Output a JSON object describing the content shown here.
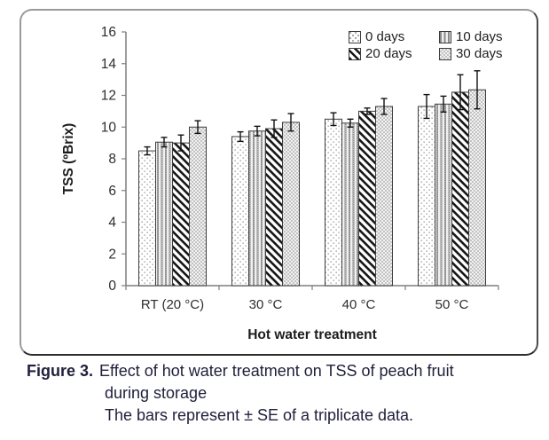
{
  "caption": {
    "label": "Figure 3.",
    "line1": "Effect of hot water treatment on TSS of peach fruit",
    "line2": "during storage",
    "line3": "The bars represent ± SE of a triplicate data."
  },
  "colors": {
    "caption_text": "#20203c",
    "axis": "#7f7f7f",
    "bar_outline": "#3d3d3d",
    "error_bar": "#111111",
    "pattern_dark": "#151515",
    "pattern_gray": "#8a8a8a",
    "pattern_light_gray": "#c2c2c2"
  },
  "chart_data": {
    "type": "bar",
    "title": "",
    "xlabel": "Hot water treatment",
    "ylabel": "TSS (ºBrix)",
    "ylim": [
      0,
      16
    ],
    "ytick_step": 2,
    "grid": false,
    "legend_position": "top-right",
    "categories": [
      "RT (20 °C)",
      "30 °C",
      "40 °C",
      "50 °C"
    ],
    "series": [
      {
        "name": "0 days",
        "pattern": "dots",
        "values": [
          8.5,
          9.4,
          10.5,
          11.3
        ],
        "errors": [
          0.25,
          0.3,
          0.4,
          0.75
        ]
      },
      {
        "name": "10 days",
        "pattern": "vstripes",
        "values": [
          9.05,
          9.75,
          10.25,
          11.45
        ],
        "errors": [
          0.3,
          0.3,
          0.25,
          0.5
        ]
      },
      {
        "name": "20 days",
        "pattern": "diagonal",
        "values": [
          9.0,
          9.9,
          11.0,
          12.2
        ],
        "errors": [
          0.5,
          0.55,
          0.2,
          1.1
        ]
      },
      {
        "name": "30 days",
        "pattern": "checker",
        "values": [
          10.0,
          10.3,
          11.3,
          12.35
        ],
        "errors": [
          0.4,
          0.55,
          0.5,
          1.2
        ]
      }
    ],
    "error_note": "± SE, triplicate"
  }
}
